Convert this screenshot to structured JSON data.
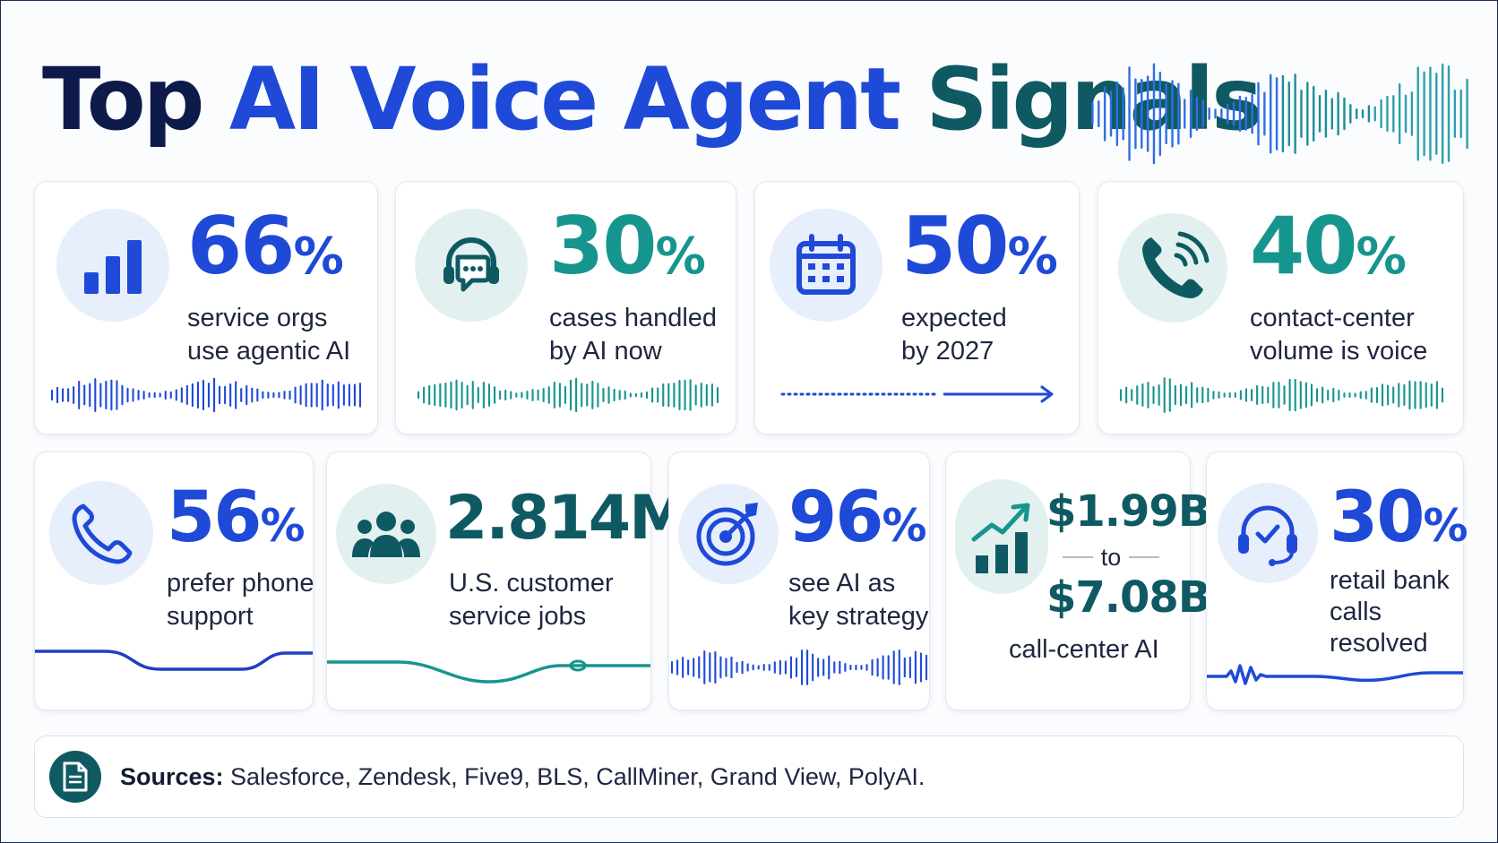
{
  "title": {
    "part1": "Top ",
    "part2": "AI Voice Agent ",
    "part3": "Signals"
  },
  "colors": {
    "navy": "#0d1a4a",
    "blue": "#1f4ad8",
    "teal": "#0f5a62",
    "teal_light": "#16958f",
    "text": "#1e2640"
  },
  "stats": [
    {
      "icon": "bar-chart-icon",
      "value": "66",
      "unit": "%",
      "line1": "service orgs",
      "line2": "use agentic AI"
    },
    {
      "icon": "headset-chat-icon",
      "value": "30",
      "unit": "%",
      "line1": "cases handled",
      "line2": "by AI now"
    },
    {
      "icon": "calendar-icon",
      "value": "50",
      "unit": "%",
      "line1": "expected",
      "line2": "by 2027"
    },
    {
      "icon": "phone-signal-icon",
      "value": "40",
      "unit": "%",
      "line1": "contact-center",
      "line2": "volume is voice"
    },
    {
      "icon": "phone-icon",
      "value": "56",
      "unit": "%",
      "line1": "prefer phone",
      "line2": "support"
    },
    {
      "icon": "people-icon",
      "value": "2.814M",
      "unit": "",
      "line1": "U.S. customer",
      "line2": "service jobs"
    },
    {
      "icon": "target-icon",
      "value": "96",
      "unit": "%",
      "line1": "see AI as",
      "line2": "key strategy"
    },
    {
      "icon": "growth-chart-icon",
      "value_from": "$1.99B",
      "connector": "to",
      "value_to": "$7.08B",
      "line1": "call-center AI"
    },
    {
      "icon": "headset-check-icon",
      "value": "30",
      "unit": "%",
      "line1": "retail bank",
      "line2": "calls",
      "line3": "resolved"
    }
  ],
  "sources": {
    "label": "Sources:",
    "text": " Salesforce, Zendesk, Five9, BLS, CallMiner, Grand View, PolyAI.",
    "icon": "document-icon"
  }
}
